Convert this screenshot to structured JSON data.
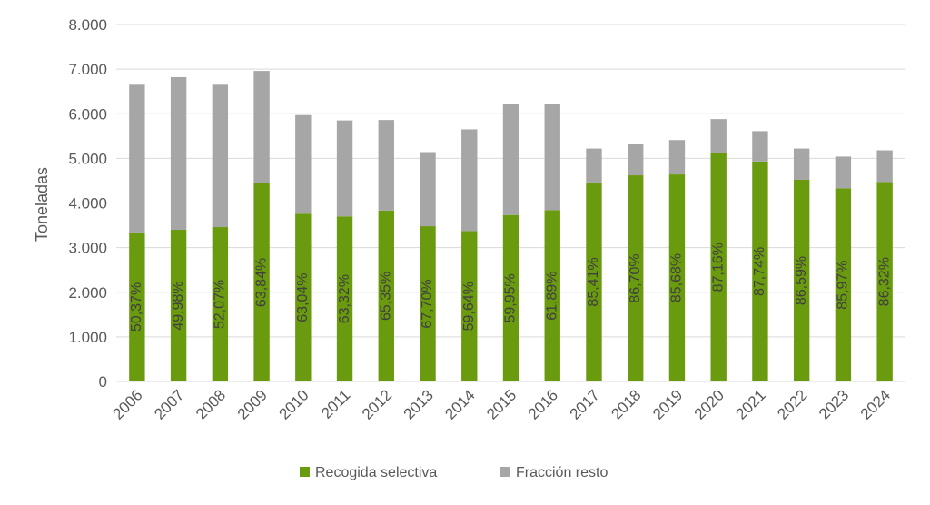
{
  "chart_data": {
    "type": "bar",
    "stacked": true,
    "categories": [
      "2006",
      "2007",
      "2008",
      "2009",
      "2010",
      "2011",
      "2012",
      "2013",
      "2014",
      "2015",
      "2016",
      "2017",
      "2018",
      "2019",
      "2020",
      "2021",
      "2022",
      "2023",
      "2024"
    ],
    "series": [
      {
        "name": "Recogida selectiva",
        "color": "#6a9a0e",
        "values": [
          3340,
          3400,
          3460,
          4440,
          3760,
          3700,
          3830,
          3480,
          3370,
          3730,
          3840,
          4460,
          4620,
          4640,
          5120,
          4930,
          4520,
          4330,
          4470
        ]
      },
      {
        "name": "Fracción resto",
        "color": "#a6a6a6",
        "values": [
          3310,
          3420,
          3190,
          2520,
          2210,
          2150,
          2030,
          1660,
          2280,
          2490,
          2370,
          760,
          710,
          770,
          760,
          680,
          700,
          710,
          710
        ]
      }
    ],
    "data_labels": [
      "50,37%",
      "49,98%",
      "52,07%",
      "63,84%",
      "63,04%",
      "63,32%",
      "65,35%",
      "67,70%",
      "59,64%",
      "59,95%",
      "61,89%",
      "85,41%",
      "86,70%",
      "85,68%",
      "87,16%",
      "87,74%",
      "86,59%",
      "85,97%",
      "86,32%"
    ],
    "ylabel": "Toneladas",
    "ylim": [
      0,
      8000
    ],
    "yticks": [
      0,
      1000,
      2000,
      3000,
      4000,
      5000,
      6000,
      7000,
      8000
    ],
    "ytick_labels": [
      "0",
      "1.000",
      "2.000",
      "3.000",
      "4.000",
      "5.000",
      "6.000",
      "7.000",
      "8.000"
    ],
    "grid": true,
    "legend_position": "bottom"
  }
}
